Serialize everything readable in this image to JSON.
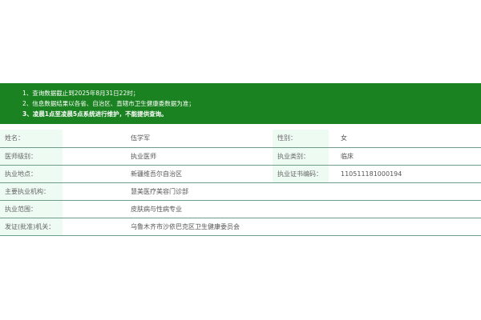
{
  "notice": [
    "1、查询数据截止到2025年8月31日22时；",
    "2、信息数据结果以各省、自治区、直辖市卫生健康委数据为准；",
    "3、凌晨1点至凌晨5点系统进行维护，不能提供查询。"
  ],
  "info": {
    "name_label": "姓名：",
    "name": "伍学军",
    "gender_label": "性别：",
    "gender": "女",
    "level_label": "医师级别：",
    "level": "执业医师",
    "type_label": "执业类别：",
    "type": "临床",
    "place_label": "执业地点：",
    "place": "新疆维吾尔自治区",
    "cert_label": "执业证书编码：",
    "cert": "110511181000194",
    "org_label": "主要执业机构：",
    "org": "慧美医疗美容门诊部",
    "scope_label": "执业范围：",
    "scope": "皮肤病与性病专业",
    "issuer_label": "发证(批准)机关：",
    "issuer": "乌鲁木齐市沙依巴克区卫生健康委员会"
  }
}
